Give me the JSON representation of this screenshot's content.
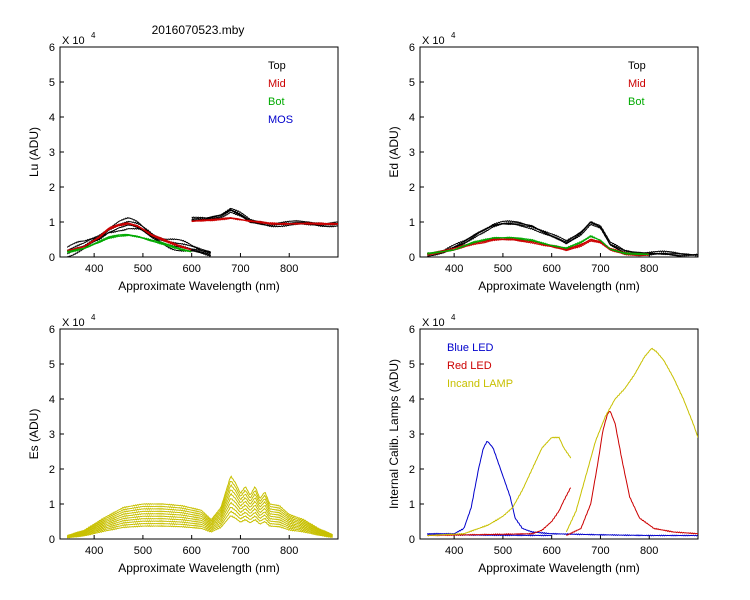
{
  "figure_title": "2016070523.mby",
  "chart_data": [
    {
      "type": "line",
      "panel": "top-left",
      "xlabel": "Approximate Wavelength (nm)",
      "ylabel": "Lu (ADU)",
      "xlim": [
        330,
        900
      ],
      "ylim": [
        0,
        6
      ],
      "xticks": [
        400,
        500,
        600,
        700,
        800
      ],
      "yticks": [
        0,
        1,
        2,
        3,
        4,
        5,
        6
      ],
      "y_multiplier": "X 10",
      "y_exponent": "4",
      "legend_position": "top-right",
      "legend": [
        {
          "label": "Top",
          "color": "#000000"
        },
        {
          "label": "Mid",
          "color": "#cc0000"
        },
        {
          "label": "Bot",
          "color": "#00aa00"
        },
        {
          "label": "MOS",
          "color": "#0000cc"
        }
      ],
      "series": [
        {
          "name": "Top",
          "color": "#000000",
          "x": [
            345,
            380,
            410,
            430,
            450,
            470,
            490,
            520,
            550,
            580,
            600,
            620,
            640
          ],
          "y": [
            0.18,
            0.3,
            0.55,
            0.8,
            0.92,
            0.95,
            0.85,
            0.6,
            0.45,
            0.3,
            0.2,
            0.15,
            0.12
          ],
          "copies": 6,
          "spread": 0.07
        },
        {
          "name": "Top",
          "color": "#000000",
          "x": [
            600,
            630,
            660,
            680,
            700,
            720,
            760,
            800,
            850,
            900
          ],
          "y": [
            1.05,
            1.08,
            1.2,
            1.35,
            1.2,
            1.0,
            0.95,
            0.95,
            0.95,
            0.95
          ],
          "copies": 5,
          "spread": 0.04
        },
        {
          "name": "Mid",
          "color": "#cc0000",
          "x": [
            345,
            380,
            410,
            430,
            450,
            470,
            490,
            520,
            550,
            580,
            600
          ],
          "y": [
            0.18,
            0.3,
            0.55,
            0.8,
            0.92,
            0.97,
            0.88,
            0.6,
            0.45,
            0.3,
            0.2
          ],
          "copies": 3,
          "spread": 0.03
        },
        {
          "name": "Mid",
          "color": "#cc0000",
          "x": [
            600,
            640,
            680,
            720,
            760,
            800,
            850,
            900
          ],
          "y": [
            1.02,
            1.05,
            1.12,
            1.02,
            0.96,
            0.95,
            0.95,
            0.95
          ],
          "copies": 3,
          "spread": 0.02
        },
        {
          "name": "Bot",
          "color": "#00aa00",
          "x": [
            345,
            380,
            410,
            430,
            450,
            470,
            490,
            520,
            550,
            580,
            600
          ],
          "y": [
            0.15,
            0.25,
            0.42,
            0.55,
            0.62,
            0.64,
            0.58,
            0.45,
            0.35,
            0.22,
            0.15
          ],
          "copies": 3,
          "spread": 0.03
        }
      ]
    },
    {
      "type": "line",
      "panel": "top-right",
      "xlabel": "Approximate Wavelength (nm)",
      "ylabel": "Ed  (ADU)",
      "xlim": [
        330,
        900
      ],
      "ylim": [
        0,
        6
      ],
      "xticks": [
        400,
        500,
        600,
        700,
        800
      ],
      "yticks": [
        0,
        1,
        2,
        3,
        4,
        5,
        6
      ],
      "y_multiplier": "X 10",
      "y_exponent": "4",
      "legend_position": "top-right",
      "legend": [
        {
          "label": "Top",
          "color": "#000000"
        },
        {
          "label": "Mid",
          "color": "#cc0000"
        },
        {
          "label": "Bot",
          "color": "#00aa00"
        }
      ],
      "series": [
        {
          "name": "Top",
          "color": "#000000",
          "x": [
            345,
            380,
            420,
            450,
            480,
            500,
            530,
            560,
            600,
            630,
            660,
            680,
            700,
            720,
            750,
            800,
            850,
            900
          ],
          "y": [
            0.1,
            0.15,
            0.4,
            0.7,
            0.9,
            0.95,
            0.95,
            0.88,
            0.6,
            0.4,
            0.7,
            1.0,
            0.85,
            0.35,
            0.15,
            0.1,
            0.08,
            0.06
          ],
          "copies": 4,
          "spread": 0.05
        },
        {
          "name": "Mid",
          "color": "#cc0000",
          "x": [
            345,
            400,
            440,
            480,
            520,
            560,
            600,
            630,
            660,
            680,
            700,
            720,
            750,
            800
          ],
          "y": [
            0.1,
            0.2,
            0.4,
            0.5,
            0.5,
            0.45,
            0.3,
            0.2,
            0.35,
            0.5,
            0.42,
            0.2,
            0.1,
            0.08
          ],
          "copies": 4,
          "spread": 0.03
        },
        {
          "name": "Bot",
          "color": "#00aa00",
          "x": [
            345,
            400,
            440,
            480,
            520,
            560,
            600,
            630,
            660,
            680,
            700,
            720,
            750,
            800
          ],
          "y": [
            0.1,
            0.2,
            0.42,
            0.55,
            0.55,
            0.48,
            0.33,
            0.25,
            0.42,
            0.6,
            0.48,
            0.22,
            0.1,
            0.08
          ],
          "copies": 2,
          "spread": 0.03
        }
      ]
    },
    {
      "type": "line",
      "panel": "bottom-left",
      "xlabel": "Approximate Wavelength (nm)",
      "ylabel": "Es  (ADU)",
      "xlim": [
        330,
        900
      ],
      "ylim": [
        0,
        6
      ],
      "xticks": [
        400,
        500,
        600,
        700,
        800
      ],
      "yticks": [
        0,
        1,
        2,
        3,
        4,
        5,
        6
      ],
      "y_multiplier": "X 10",
      "y_exponent": "4",
      "legend": [],
      "series": [
        {
          "name": "Es",
          "color": "#c8c000",
          "x": [
            345,
            380,
            420,
            460,
            500,
            540,
            580,
            620,
            640,
            660,
            680,
            690,
            700,
            710,
            720,
            730,
            740,
            750,
            760,
            780,
            800,
            830,
            860,
            890
          ],
          "y": [
            0.1,
            0.25,
            0.6,
            0.9,
            1.0,
            1.0,
            0.95,
            0.82,
            0.55,
            0.9,
            1.8,
            1.6,
            1.3,
            1.5,
            1.25,
            1.5,
            1.15,
            1.35,
            1.0,
            0.95,
            0.7,
            0.55,
            0.3,
            0.12
          ],
          "copies": 10,
          "scale_step": 0.07
        }
      ]
    },
    {
      "type": "line",
      "panel": "bottom-right",
      "xlabel": "Approximate Wavelength (nm)",
      "ylabel": "Internal Calib. Lamps (ADU)",
      "xlim": [
        330,
        900
      ],
      "ylim": [
        0,
        6
      ],
      "xticks": [
        400,
        500,
        600,
        700,
        800
      ],
      "yticks": [
        0,
        1,
        2,
        3,
        4,
        5,
        6
      ],
      "y_multiplier": "X 10",
      "y_exponent": "4",
      "legend_position": "top-left",
      "legend": [
        {
          "label": "Blue LED",
          "color": "#0000cc"
        },
        {
          "label": "Red LED",
          "color": "#cc0000"
        },
        {
          "label": "Incand LAMP",
          "color": "#c8c000"
        }
      ],
      "series": [
        {
          "name": "Blue LED",
          "color": "#0000cc",
          "x": [
            345,
            400,
            420,
            435,
            450,
            460,
            468,
            480,
            495,
            505,
            515,
            525,
            540,
            560,
            600,
            700,
            800,
            900
          ],
          "y": [
            0.15,
            0.15,
            0.3,
            0.9,
            2.0,
            2.6,
            2.8,
            2.6,
            2.0,
            1.6,
            1.2,
            0.6,
            0.3,
            0.2,
            0.15,
            0.12,
            0.1,
            0.1
          ],
          "copies": 1
        },
        {
          "name": "Blue LED",
          "color": "#0000cc",
          "x": [
            345,
            600
          ],
          "y": [
            0.12,
            0.1
          ],
          "copies": 1
        },
        {
          "name": "Red LED",
          "color": "#cc0000",
          "x": [
            345,
            560,
            580,
            600,
            615,
            625,
            640
          ],
          "y": [
            0.1,
            0.15,
            0.25,
            0.5,
            0.8,
            1.1,
            1.5
          ],
          "copies": 1
        },
        {
          "name": "Red LED",
          "color": "#cc0000",
          "x": [
            630,
            660,
            680,
            695,
            705,
            715,
            720,
            730,
            745,
            760,
            780,
            810,
            850,
            900
          ],
          "y": [
            0.1,
            0.3,
            1.0,
            2.2,
            3.1,
            3.6,
            3.65,
            3.3,
            2.2,
            1.2,
            0.6,
            0.3,
            0.2,
            0.15
          ],
          "copies": 1
        },
        {
          "name": "Incand LAMP",
          "color": "#c8c000",
          "x": [
            345,
            420,
            470,
            500,
            520,
            540,
            560,
            580,
            600,
            615,
            625,
            640
          ],
          "y": [
            0.1,
            0.15,
            0.4,
            0.65,
            0.9,
            1.4,
            2.0,
            2.6,
            2.9,
            2.9,
            2.6,
            2.3
          ],
          "copies": 1
        },
        {
          "name": "Incand LAMP",
          "color": "#c8c000",
          "x": [
            630,
            650,
            670,
            690,
            710,
            730,
            750,
            770,
            790,
            805,
            815,
            830,
            850,
            870,
            890,
            900
          ],
          "y": [
            0.2,
            0.8,
            1.8,
            2.8,
            3.5,
            4.0,
            4.3,
            4.7,
            5.2,
            5.45,
            5.35,
            5.1,
            4.6,
            4.0,
            3.3,
            2.9
          ],
          "copies": 1
        }
      ]
    }
  ]
}
